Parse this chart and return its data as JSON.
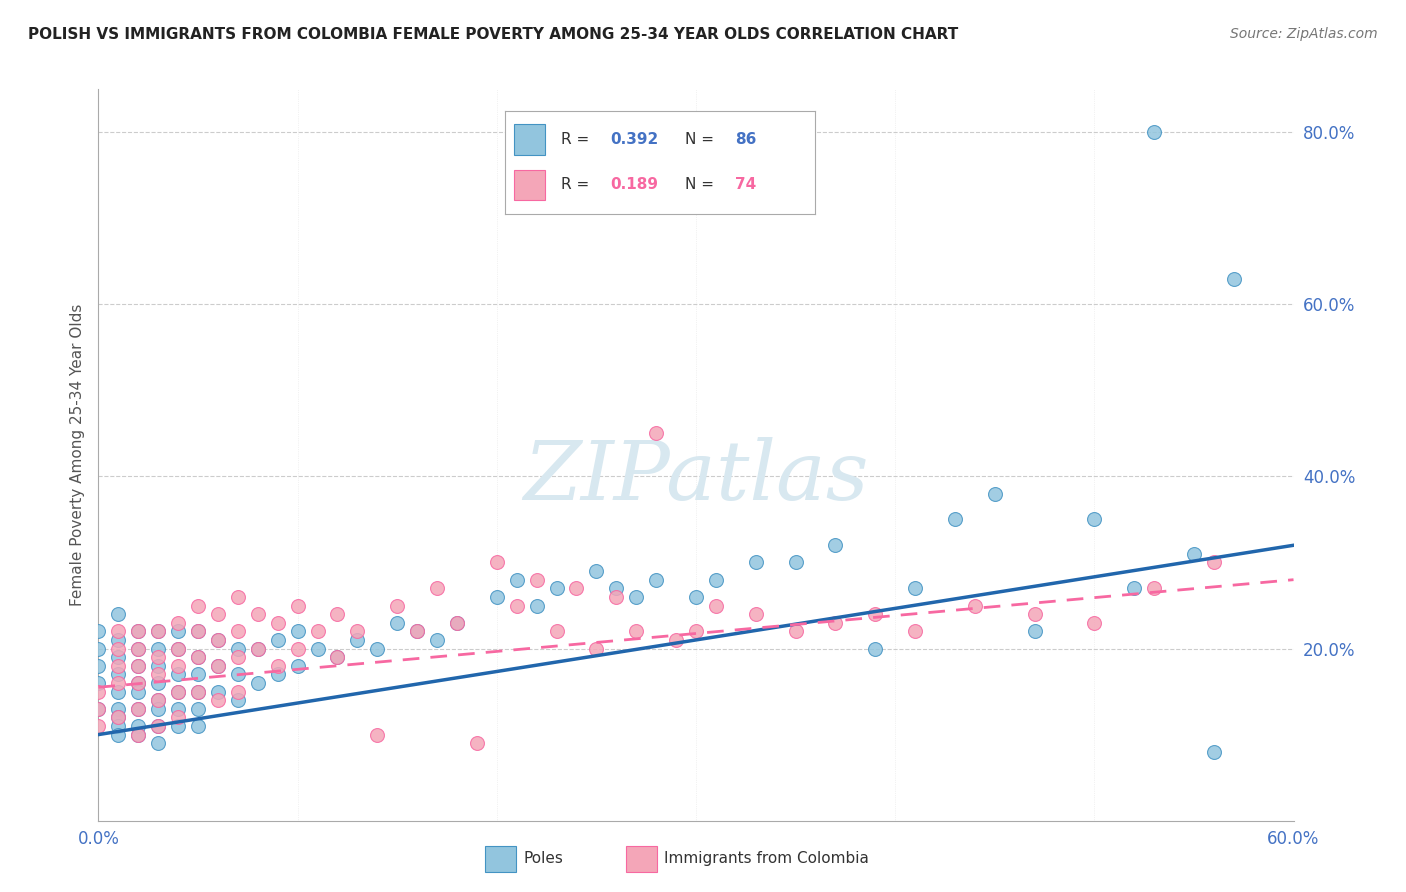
{
  "title": "POLISH VS IMMIGRANTS FROM COLOMBIA FEMALE POVERTY AMONG 25-34 YEAR OLDS CORRELATION CHART",
  "source": "Source: ZipAtlas.com",
  "ylabel": "Female Poverty Among 25-34 Year Olds",
  "color_blue": "#92c5de",
  "color_pink": "#f4a6b8",
  "color_blue_line": "#2166ac",
  "color_pink_line": "#d6604d",
  "color_blue_dark": "#4393c3",
  "color_pink_dark": "#f768a1",
  "watermark": "ZIPatlas",
  "watermark_color": "#d8e8f0",
  "xlim": [
    0.0,
    0.6
  ],
  "ylim": [
    0.0,
    0.85
  ],
  "x_ticks_show": [
    0.0,
    0.6
  ],
  "x_ticks_show_labels": [
    "0.0%",
    "60.0%"
  ],
  "x_ticks_minor": [
    0.1,
    0.2,
    0.3,
    0.4,
    0.5
  ],
  "y_ticks": [
    0.2,
    0.4,
    0.6,
    0.8
  ],
  "y_tick_labels": [
    "20.0%",
    "40.0%",
    "60.0%",
    "80.0%"
  ],
  "legend_blue_r": "0.392",
  "legend_blue_n": "86",
  "legend_pink_r": "0.189",
  "legend_pink_n": "74",
  "poles_x": [
    0.0,
    0.0,
    0.0,
    0.0,
    0.0,
    0.01,
    0.01,
    0.01,
    0.01,
    0.01,
    0.01,
    0.01,
    0.01,
    0.01,
    0.02,
    0.02,
    0.02,
    0.02,
    0.02,
    0.02,
    0.02,
    0.02,
    0.03,
    0.03,
    0.03,
    0.03,
    0.03,
    0.03,
    0.03,
    0.03,
    0.04,
    0.04,
    0.04,
    0.04,
    0.04,
    0.04,
    0.05,
    0.05,
    0.05,
    0.05,
    0.05,
    0.05,
    0.06,
    0.06,
    0.06,
    0.07,
    0.07,
    0.07,
    0.08,
    0.08,
    0.09,
    0.09,
    0.1,
    0.1,
    0.11,
    0.12,
    0.13,
    0.14,
    0.15,
    0.16,
    0.17,
    0.18,
    0.2,
    0.21,
    0.22,
    0.23,
    0.25,
    0.26,
    0.27,
    0.28,
    0.3,
    0.31,
    0.33,
    0.35,
    0.37,
    0.39,
    0.41,
    0.43,
    0.45,
    0.47,
    0.5,
    0.52,
    0.53,
    0.55,
    0.56,
    0.57
  ],
  "poles_y": [
    0.22,
    0.2,
    0.18,
    0.16,
    0.13,
    0.24,
    0.21,
    0.19,
    0.17,
    0.15,
    0.13,
    0.12,
    0.11,
    0.1,
    0.22,
    0.2,
    0.18,
    0.16,
    0.15,
    0.13,
    0.11,
    0.1,
    0.22,
    0.2,
    0.18,
    0.16,
    0.14,
    0.13,
    0.11,
    0.09,
    0.22,
    0.2,
    0.17,
    0.15,
    0.13,
    0.11,
    0.22,
    0.19,
    0.17,
    0.15,
    0.13,
    0.11,
    0.21,
    0.18,
    0.15,
    0.2,
    0.17,
    0.14,
    0.2,
    0.16,
    0.21,
    0.17,
    0.22,
    0.18,
    0.2,
    0.19,
    0.21,
    0.2,
    0.23,
    0.22,
    0.21,
    0.23,
    0.26,
    0.28,
    0.25,
    0.27,
    0.29,
    0.27,
    0.26,
    0.28,
    0.26,
    0.28,
    0.3,
    0.3,
    0.32,
    0.2,
    0.27,
    0.35,
    0.38,
    0.22,
    0.35,
    0.27,
    0.8,
    0.31,
    0.08,
    0.63
  ],
  "colombia_x": [
    0.0,
    0.0,
    0.0,
    0.01,
    0.01,
    0.01,
    0.01,
    0.01,
    0.02,
    0.02,
    0.02,
    0.02,
    0.02,
    0.02,
    0.03,
    0.03,
    0.03,
    0.03,
    0.03,
    0.04,
    0.04,
    0.04,
    0.04,
    0.04,
    0.05,
    0.05,
    0.05,
    0.05,
    0.06,
    0.06,
    0.06,
    0.06,
    0.07,
    0.07,
    0.07,
    0.07,
    0.08,
    0.08,
    0.09,
    0.09,
    0.1,
    0.1,
    0.11,
    0.12,
    0.12,
    0.13,
    0.14,
    0.15,
    0.16,
    0.17,
    0.18,
    0.19,
    0.2,
    0.21,
    0.22,
    0.23,
    0.24,
    0.25,
    0.26,
    0.27,
    0.28,
    0.29,
    0.3,
    0.31,
    0.33,
    0.35,
    0.37,
    0.39,
    0.41,
    0.44,
    0.47,
    0.5,
    0.53,
    0.56
  ],
  "colombia_y": [
    0.15,
    0.13,
    0.11,
    0.22,
    0.2,
    0.18,
    0.16,
    0.12,
    0.22,
    0.2,
    0.18,
    0.16,
    0.13,
    0.1,
    0.22,
    0.19,
    0.17,
    0.14,
    0.11,
    0.23,
    0.2,
    0.18,
    0.15,
    0.12,
    0.25,
    0.22,
    0.19,
    0.15,
    0.24,
    0.21,
    0.18,
    0.14,
    0.26,
    0.22,
    0.19,
    0.15,
    0.24,
    0.2,
    0.23,
    0.18,
    0.25,
    0.2,
    0.22,
    0.24,
    0.19,
    0.22,
    0.1,
    0.25,
    0.22,
    0.27,
    0.23,
    0.09,
    0.3,
    0.25,
    0.28,
    0.22,
    0.27,
    0.2,
    0.26,
    0.22,
    0.45,
    0.21,
    0.22,
    0.25,
    0.24,
    0.22,
    0.23,
    0.24,
    0.22,
    0.25,
    0.24,
    0.23,
    0.27,
    0.3
  ],
  "poles_line_x": [
    0.0,
    0.6
  ],
  "poles_line_y": [
    0.1,
    0.32
  ],
  "colombia_line_x": [
    0.0,
    0.6
  ],
  "colombia_line_y": [
    0.155,
    0.28
  ]
}
